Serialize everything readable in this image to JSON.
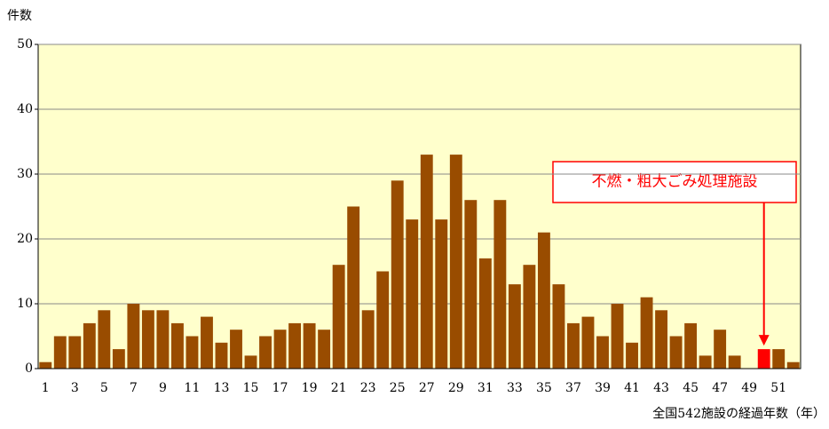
{
  "chart_data": {
    "type": "bar",
    "ylabel": "件数",
    "xlabel": "全国542施設の経過年数（年）",
    "annotation": "不燃・粗大ごみ処理施設",
    "categories": [
      "1",
      null,
      "3",
      null,
      "5",
      null,
      "7",
      null,
      "9",
      null,
      "11",
      null,
      "13",
      null,
      "15",
      null,
      "17",
      null,
      "19",
      null,
      "21",
      null,
      "23",
      null,
      "25",
      null,
      "27",
      null,
      "29",
      null,
      "31",
      null,
      "33",
      null,
      "35",
      null,
      "37",
      null,
      "39",
      null,
      "41",
      null,
      "43",
      null,
      "45",
      null,
      "47",
      null,
      "49",
      null,
      "51",
      null
    ],
    "values": [
      1,
      5,
      5,
      7,
      9,
      3,
      10,
      9,
      9,
      7,
      5,
      8,
      4,
      6,
      2,
      5,
      6,
      7,
      7,
      6,
      16,
      25,
      9,
      15,
      29,
      23,
      33,
      23,
      33,
      26,
      17,
      26,
      13,
      16,
      21,
      13,
      7,
      8,
      5,
      10,
      4,
      11,
      9,
      5,
      7,
      2,
      6,
      2,
      0,
      3,
      3,
      1
    ],
    "color": "#994c00",
    "highlight": {
      "index": 49,
      "color": "#ff0000"
    },
    "ylim": [
      0,
      50
    ],
    "yticks": [
      0,
      10,
      20,
      30,
      40,
      50
    ],
    "grid": true
  }
}
